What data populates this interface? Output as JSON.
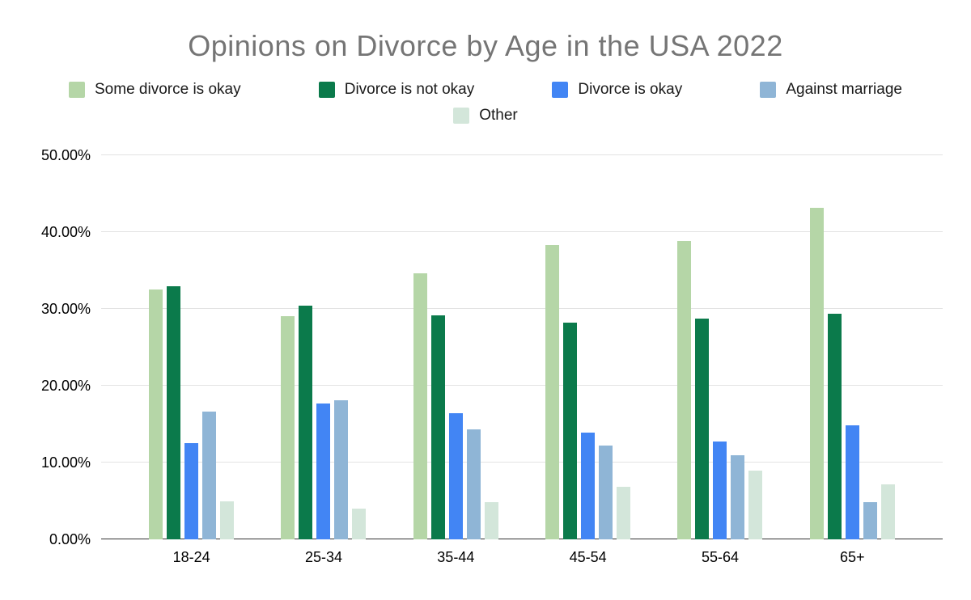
{
  "chart_data": {
    "type": "bar",
    "title": "Opinions on Divorce by Age in the USA 2022",
    "categories": [
      "18-24",
      "25-34",
      "35-44",
      "45-54",
      "55-64",
      "65+"
    ],
    "series": [
      {
        "name": "Some divorce is okay",
        "color": "#b5d6a7",
        "values": [
          32.5,
          29.1,
          34.6,
          38.3,
          38.8,
          43.2
        ]
      },
      {
        "name": "Divorce is not okay",
        "color": "#0b7a4b",
        "values": [
          33.0,
          30.4,
          29.2,
          28.2,
          28.7,
          29.4
        ]
      },
      {
        "name": "Divorce is okay",
        "color": "#4285f4",
        "values": [
          12.5,
          17.7,
          16.4,
          13.9,
          12.7,
          14.8
        ]
      },
      {
        "name": "Against marriage",
        "color": "#8fb5d6",
        "values": [
          16.6,
          18.1,
          14.3,
          12.2,
          11.0,
          4.8
        ]
      },
      {
        "name": "Other",
        "color": "#d3e6da",
        "values": [
          5.0,
          4.0,
          4.8,
          6.8,
          9.0,
          7.2
        ]
      }
    ],
    "xlabel": "",
    "ylabel": "",
    "ylim": [
      0,
      50
    ],
    "ytick_step": 10,
    "ytick_labels": [
      "0.00%",
      "10.00%",
      "20.00%",
      "30.00%",
      "40.00%",
      "50.00%"
    ],
    "grid": true,
    "legend_position": "top",
    "legend_rows": [
      4,
      1
    ],
    "colors": {
      "title": "#757575",
      "gridline": "#e3e3e3",
      "baseline": "#333333",
      "tick_text": "#000000",
      "legend_text": "#1a1a1a",
      "background": "#ffffff"
    }
  }
}
